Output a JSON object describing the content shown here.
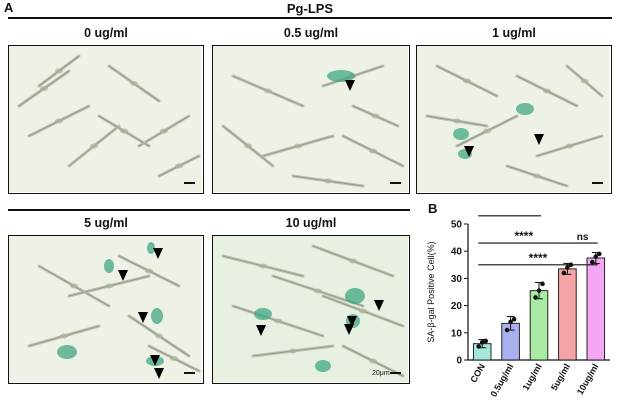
{
  "figure": {
    "panel_a_letter": "A",
    "panel_b_letter": "B",
    "group_title": "Pg-LPS",
    "images": [
      {
        "label": "0 ug/ml",
        "arrows": 0
      },
      {
        "label": "0.5 ug/ml",
        "arrows": 1
      },
      {
        "label": "1 ug/ml",
        "arrows": 2
      },
      {
        "label": "5 ug/ml",
        "arrows": 5
      },
      {
        "label": "10 ug/ml",
        "arrows": 4
      }
    ],
    "scale_bar_label": "20μm",
    "colors": {
      "background_cells": "#f1f3ea",
      "stain": "#3fa783",
      "arrow": "#000000"
    }
  },
  "chart_data": {
    "type": "bar",
    "ylabel": "SA-β-gal  Positive Cell(%)",
    "ylim": [
      0,
      50
    ],
    "yticks": [
      "0",
      "10",
      "20",
      "30",
      "40",
      "50"
    ],
    "categories": [
      "CON",
      "0.5ug/ml",
      "1ug/ml",
      "5ug/ml",
      "10ug/ml"
    ],
    "values": [
      6,
      13.5,
      25.5,
      33.5,
      37.5
    ],
    "errors": [
      1.5,
      2.5,
      3,
      2,
      2
    ],
    "points": [
      [
        5,
        6.5,
        7
      ],
      [
        11,
        14,
        15
      ],
      [
        23,
        25.5,
        28
      ],
      [
        32,
        34,
        35
      ],
      [
        36,
        38,
        39
      ]
    ],
    "colors": [
      "#a6e7dc",
      "#a8b0f0",
      "#a9eba2",
      "#f5a3a6",
      "#f3a6f3"
    ],
    "significance": [
      {
        "from": 0,
        "to": 1,
        "label": "*"
      },
      {
        "from": 0,
        "to": 2,
        "label": "***"
      },
      {
        "from": 0,
        "to": 3,
        "label": "****"
      },
      {
        "from": 0,
        "to": 4,
        "label": "****"
      },
      {
        "from": 3,
        "to": 4,
        "label": "ns"
      }
    ]
  }
}
